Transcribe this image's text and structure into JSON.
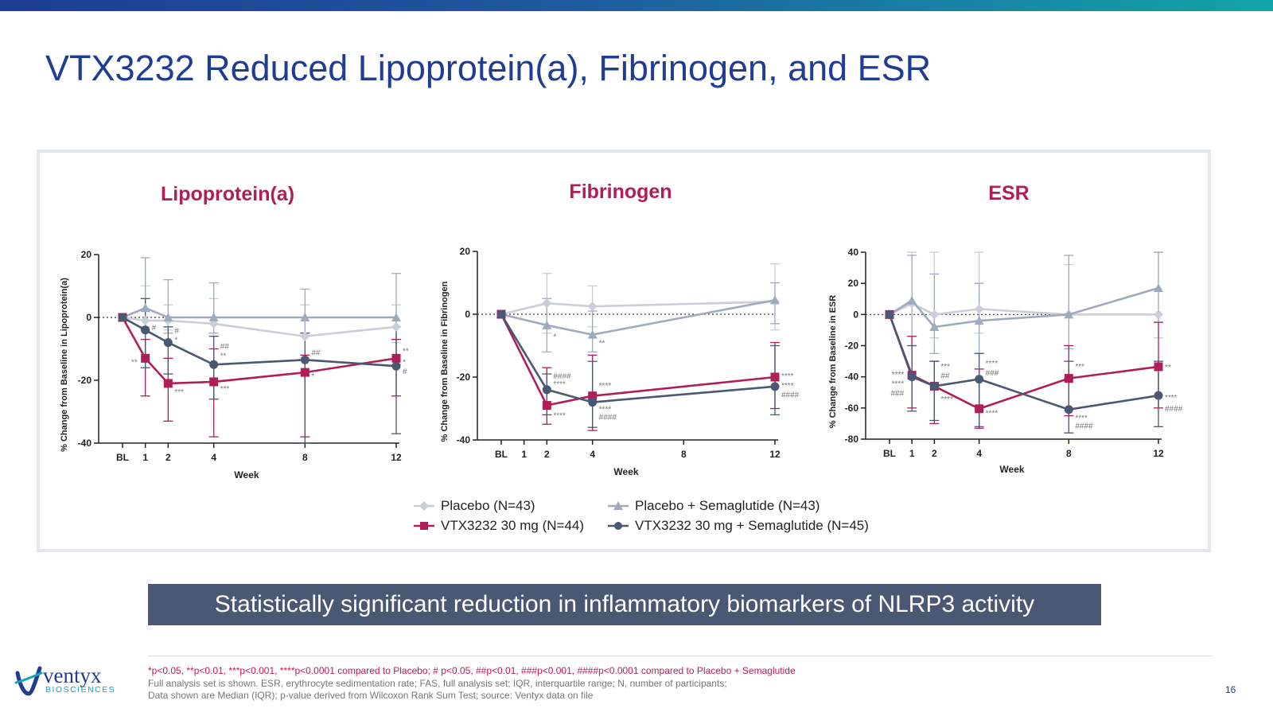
{
  "title": "VTX3232 Reduced Lipoprotein(a), Fibrinogen, and ESR",
  "banner": "Statistically significant reduction in inflammatory biomarkers of NLRP3 activity",
  "footnotes": {
    "line1": "*p<0.05, **p<0.01, ***p<0.001, ****p<0.0001 compared to Placebo; # p<0.05, ##p<0.01, ###p<0.001, ####p<0.0001 compared to Placebo + Semaglutide",
    "line2": "Full analysis set is shown. ESR, erythrocyte sedimentation rate; FAS, full analysis set; IQR, interquartile range; N, number of participants;",
    "line3": "Data shown are Median (IQR); p-value derived from Wilcoxon Rank Sum Test; source: Ventyx data on file"
  },
  "page_number": "16",
  "logo": {
    "word": "ventyx",
    "sub": "BIOSCIENCES",
    "icon": "ventyx-swirl-icon"
  },
  "colors": {
    "title": "#1f3d93",
    "chart_title": "#b01e5a",
    "placebo": "#c9ced8",
    "placebo_sema": "#a0aabf",
    "vtx": "#b01e5a",
    "vtx_sema": "#4a5873",
    "banner": "#4a5873"
  },
  "legend": [
    {
      "label": "Placebo (N=43)",
      "color": "#c9ced8",
      "marker": "diamond"
    },
    {
      "label": "Placebo + Semaglutide (N=43)",
      "color": "#a0aabf",
      "marker": "triangle"
    },
    {
      "label": "VTX3232 30 mg (N=44)",
      "color": "#b01e5a",
      "marker": "square"
    },
    {
      "label": "VTX3232 30 mg + Semaglutide (N=45)",
      "color": "#4a5873",
      "marker": "circle"
    }
  ],
  "chart_data": [
    {
      "type": "line",
      "title": "Lipoprotein(a)",
      "xlabel": "Week",
      "ylabel": "% Change from Baseline in Lipoprotein(a)",
      "x": [
        0,
        1,
        2,
        4,
        8,
        12
      ],
      "xticklabels": [
        "BL",
        "1",
        "2",
        "4",
        "8",
        "12"
      ],
      "ylim": [
        -40,
        20
      ],
      "yticks": [
        20,
        0,
        -20,
        -40
      ],
      "series": [
        {
          "name": "Placebo (N=43)",
          "values": [
            0,
            -1,
            -1,
            -2,
            -6,
            -3
          ],
          "err": [
            [
              0,
              0
            ],
            [
              -3,
              10
            ],
            [
              -4,
              4
            ],
            [
              -6,
              6
            ],
            [
              -12,
              4
            ],
            [
              -8,
              4
            ]
          ]
        },
        {
          "name": "Placebo + Semaglutide (N=43)",
          "values": [
            0,
            3,
            0,
            0,
            0,
            0
          ],
          "err": [
            [
              0,
              0
            ],
            [
              -4,
              19
            ],
            [
              -5,
              12
            ],
            [
              -5,
              11
            ],
            [
              -5,
              9
            ],
            [
              -15,
              14
            ]
          ]
        },
        {
          "name": "VTX3232 30 mg (N=44)",
          "values": [
            0,
            -13,
            -21,
            -20.5,
            -17.5,
            -13
          ],
          "err": [
            [
              0,
              0
            ],
            [
              -25,
              -7
            ],
            [
              -33,
              -13
            ],
            [
              -38,
              -10
            ],
            [
              -38,
              -12
            ],
            [
              -25,
              -7
            ]
          ]
        },
        {
          "name": "VTX3232 30 mg + Semaglutide (N=45)",
          "values": [
            0,
            -4,
            -8,
            -15,
            -13.5,
            -15.5
          ],
          "err": [
            [
              0,
              0
            ],
            [
              -16,
              6
            ],
            [
              -18,
              -3
            ],
            [
              -26,
              -6
            ],
            [
              -40,
              -5
            ],
            [
              -37,
              -3
            ]
          ]
        }
      ],
      "annotations": [
        {
          "x": 1,
          "y": -14,
          "text": "**",
          "pos": "left"
        },
        {
          "x": 1,
          "y": -3,
          "text": "#",
          "pos": "right"
        },
        {
          "x": 2,
          "y": -4,
          "text": "#",
          "pos": "right"
        },
        {
          "x": 2,
          "y": -7,
          "text": "*",
          "pos": "right"
        },
        {
          "x": 2,
          "y": -23.5,
          "text": "***",
          "pos": "right"
        },
        {
          "x": 4,
          "y": -9,
          "text": "##",
          "pos": "right"
        },
        {
          "x": 4,
          "y": -12,
          "text": "**",
          "pos": "right"
        },
        {
          "x": 4,
          "y": -22.5,
          "text": "***",
          "pos": "right"
        },
        {
          "x": 8,
          "y": -11,
          "text": "##",
          "pos": "right"
        },
        {
          "x": 8,
          "y": -18.5,
          "text": "*",
          "pos": "right"
        },
        {
          "x": 12,
          "y": -10.5,
          "text": "**",
          "pos": "right"
        },
        {
          "x": 12,
          "y": -14,
          "text": "*",
          "pos": "right"
        },
        {
          "x": 12,
          "y": -17,
          "text": "#",
          "pos": "right"
        }
      ]
    },
    {
      "type": "line",
      "title": "Fibrinogen",
      "xlabel": "Week",
      "ylabel": "% Change from Baseline in Fibrinogen",
      "x": [
        0,
        1,
        2,
        4,
        8,
        12
      ],
      "xticklabels": [
        "BL",
        "1",
        "2",
        "4",
        "8",
        "12"
      ],
      "ylim": [
        -40,
        20
      ],
      "yticks": [
        20,
        0,
        -20,
        -40
      ],
      "series": [
        {
          "name": "Placebo (N=43)",
          "values": [
            0,
            null,
            3.5,
            2.5,
            null,
            4
          ],
          "err": [
            [
              0,
              0
            ],
            null,
            [
              -6,
              13
            ],
            [
              -4,
              9
            ],
            null,
            [
              -5,
              16
            ]
          ]
        },
        {
          "name": "Placebo + Semaglutide (N=43)",
          "values": [
            0,
            null,
            -3.5,
            -6.5,
            null,
            4.5
          ],
          "err": [
            [
              0,
              0
            ],
            null,
            [
              -12,
              5
            ],
            [
              -12,
              1
            ],
            null,
            [
              -3,
              10
            ]
          ]
        },
        {
          "name": "VTX3232 30 mg (N=44)",
          "values": [
            0,
            null,
            -29,
            -26,
            null,
            -20
          ],
          "err": [
            [
              0,
              0
            ],
            null,
            [
              -35,
              -17
            ],
            [
              -37,
              -13
            ],
            null,
            [
              -30,
              -9
            ]
          ]
        },
        {
          "name": "VTX3232 30 mg + Semaglutide (N=45)",
          "values": [
            0,
            null,
            -24,
            -28,
            null,
            -23
          ],
          "err": [
            [
              0,
              0
            ],
            null,
            [
              -32,
              -19
            ],
            [
              -36,
              -15
            ],
            null,
            [
              -32,
              -10
            ]
          ]
        }
      ],
      "annotations": [
        {
          "x": 2,
          "y": -7,
          "text": "*",
          "pos": "right"
        },
        {
          "x": 2,
          "y": -19.5,
          "text": "####",
          "pos": "right"
        },
        {
          "x": 2,
          "y": -22,
          "text": "****",
          "pos": "right"
        },
        {
          "x": 2,
          "y": -32,
          "text": "****",
          "pos": "right"
        },
        {
          "x": 4,
          "y": -9,
          "text": "**",
          "pos": "right"
        },
        {
          "x": 4,
          "y": -22.5,
          "text": "****",
          "pos": "right"
        },
        {
          "x": 4,
          "y": -30,
          "text": "****",
          "pos": "right"
        },
        {
          "x": 4,
          "y": -32.5,
          "text": "####",
          "pos": "right"
        },
        {
          "x": 12,
          "y": -19.5,
          "text": "****",
          "pos": "right"
        },
        {
          "x": 12,
          "y": -22.5,
          "text": "****",
          "pos": "right"
        },
        {
          "x": 12,
          "y": -25.5,
          "text": "####",
          "pos": "right"
        }
      ]
    },
    {
      "type": "line",
      "title": "ESR",
      "xlabel": "Week",
      "ylabel": "% Change from Baseline in ESR",
      "x": [
        0,
        1,
        2,
        4,
        8,
        12
      ],
      "xticklabels": [
        "BL",
        "1",
        "2",
        "4",
        "8",
        "12"
      ],
      "ylim": [
        -80,
        40
      ],
      "yticks": [
        40,
        20,
        0,
        -20,
        -40,
        -60,
        -80
      ],
      "series": [
        {
          "name": "Placebo (N=43)",
          "values": [
            0,
            7,
            0,
            3.5,
            0,
            0
          ],
          "err": [
            [
              0,
              0
            ],
            [
              -20,
              40
            ],
            [
              -15,
              40
            ],
            [
              -12,
              40
            ],
            [
              -20,
              32
            ],
            [
              -15,
              40
            ]
          ]
        },
        {
          "name": "Placebo + Semaglutide (N=43)",
          "values": [
            0,
            9,
            -8,
            -4,
            0,
            17
          ],
          "err": [
            [
              0,
              0
            ],
            [
              -14,
              38
            ],
            [
              -25,
              26
            ],
            [
              -25,
              20
            ],
            [
              -22,
              38
            ],
            [
              -5,
              40
            ]
          ]
        },
        {
          "name": "VTX3232 30 mg (N=44)",
          "values": [
            0,
            -39,
            -46,
            -60.5,
            -41,
            -33.5
          ],
          "err": [
            [
              0,
              0
            ],
            [
              -60,
              -14
            ],
            [
              -70,
              -30
            ],
            [
              -73,
              -35
            ],
            [
              -65,
              -20
            ],
            [
              -60,
              -5
            ]
          ]
        },
        {
          "name": "VTX3232 30 mg + Semaglutide (N=45)",
          "values": [
            0,
            -40,
            -46,
            -41.5,
            -61,
            -52
          ],
          "err": [
            [
              0,
              0
            ],
            [
              -62,
              -20
            ],
            [
              -68,
              -30
            ],
            [
              -72,
              -25
            ],
            [
              -76,
              -30
            ],
            [
              -72,
              -30
            ]
          ]
        }
      ],
      "annotations": [
        {
          "x": 1,
          "y": -38,
          "text": "****",
          "pos": "left"
        },
        {
          "x": 1,
          "y": -44,
          "text": "****",
          "pos": "left"
        },
        {
          "x": 1,
          "y": -50,
          "text": "###",
          "pos": "left"
        },
        {
          "x": 2,
          "y": -33,
          "text": "***",
          "pos": "right"
        },
        {
          "x": 2,
          "y": -39,
          "text": "##",
          "pos": "right"
        },
        {
          "x": 2,
          "y": -54,
          "text": "****",
          "pos": "right"
        },
        {
          "x": 4,
          "y": -31,
          "text": "****",
          "pos": "right"
        },
        {
          "x": 4,
          "y": -37,
          "text": "###",
          "pos": "right"
        },
        {
          "x": 4,
          "y": -63,
          "text": "****",
          "pos": "right"
        },
        {
          "x": 8,
          "y": -33,
          "text": "***",
          "pos": "right"
        },
        {
          "x": 8,
          "y": -66,
          "text": "****",
          "pos": "right"
        },
        {
          "x": 8,
          "y": -71,
          "text": "####",
          "pos": "right"
        },
        {
          "x": 12,
          "y": -33.5,
          "text": "**",
          "pos": "right"
        },
        {
          "x": 12,
          "y": -53,
          "text": "****",
          "pos": "right"
        },
        {
          "x": 12,
          "y": -60,
          "text": "####",
          "pos": "right"
        }
      ]
    }
  ]
}
